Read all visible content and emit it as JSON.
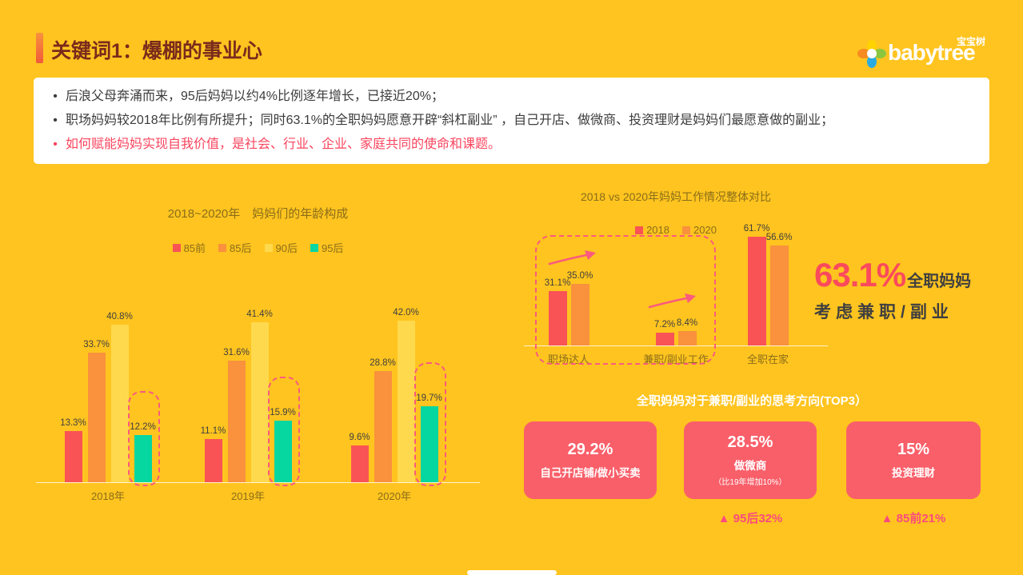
{
  "header": {
    "title": "关键词1：爆棚的事业心",
    "logo_brand": "babytree",
    "logo_cn": "宝宝树"
  },
  "summary": {
    "bullets": [
      "后浪父母奔涌而来，95后妈妈以约4%比例逐年增长，已接近20%；",
      "职场妈妈较2018年比例有所提升；同时63.1%的全职妈妈愿意开辟“斜杠副业” ，自己开店、做微商、投资理财是妈妈们最愿意做的副业；",
      "如何赋能妈妈实现自我价值，是社会、行业、企业、家庭共同的使命和课题。"
    ]
  },
  "chart_data": [
    {
      "type": "bar",
      "title": "2018~2020年　妈妈们的年龄构成",
      "categories": [
        "2018年",
        "2019年",
        "2020年"
      ],
      "series": [
        {
          "name": "85前",
          "color": "#F95355",
          "values": [
            13.3,
            11.1,
            9.6
          ]
        },
        {
          "name": "85后",
          "color": "#F9913D",
          "values": [
            33.7,
            31.6,
            28.8
          ]
        },
        {
          "name": "90后",
          "color": "#FFD94D",
          "values": [
            40.8,
            41.4,
            42.0
          ]
        },
        {
          "name": "95后",
          "color": "#06D6A0",
          "values": [
            12.2,
            15.9,
            19.7
          ],
          "highlighted": true
        }
      ],
      "value_suffix": "%",
      "ylim": [
        0,
        45
      ],
      "legend_position": "top",
      "grid": false
    },
    {
      "type": "bar",
      "title": "2018 vs 2020年妈妈工作情况整体对比",
      "categories": [
        "职场达人",
        "兼职/副业工作",
        "全职在家"
      ],
      "series": [
        {
          "name": "2018",
          "color": "#F95355",
          "values": [
            31.1,
            7.2,
            61.7
          ]
        },
        {
          "name": "2020",
          "color": "#F9913D",
          "values": [
            35.0,
            8.4,
            56.6
          ]
        }
      ],
      "highlighted_categories": [
        "职场达人",
        "兼职/副业工作"
      ],
      "value_suffix": "%",
      "ylim": [
        0,
        65
      ],
      "legend_position": "top",
      "grid": false
    }
  ],
  "callout": {
    "value": "63.1%",
    "label": "全职妈妈",
    "line2": "考虑兼职/副业"
  },
  "top3": {
    "title": "全职妈妈对于兼职/副业的思考方向(TOP3）",
    "cards": [
      {
        "value": "29.2%",
        "label": "自己开店铺/做小买卖",
        "note": "",
        "footnote": ""
      },
      {
        "value": "28.5%",
        "label": "做微商",
        "note": "（比19年增加10%）",
        "footnote": "▲ 95后32%"
      },
      {
        "value": "15%",
        "label": "投资理财",
        "note": "",
        "footnote": "▲ 85前21%"
      }
    ]
  },
  "colors": {
    "background": "#FFC41F",
    "title": "#7A2B1C",
    "accent_red": "#FB4A5C",
    "chart_text": "#8A6D1A",
    "card_bg": "#F95F69",
    "highlight_pink": "#FB5A7E"
  }
}
